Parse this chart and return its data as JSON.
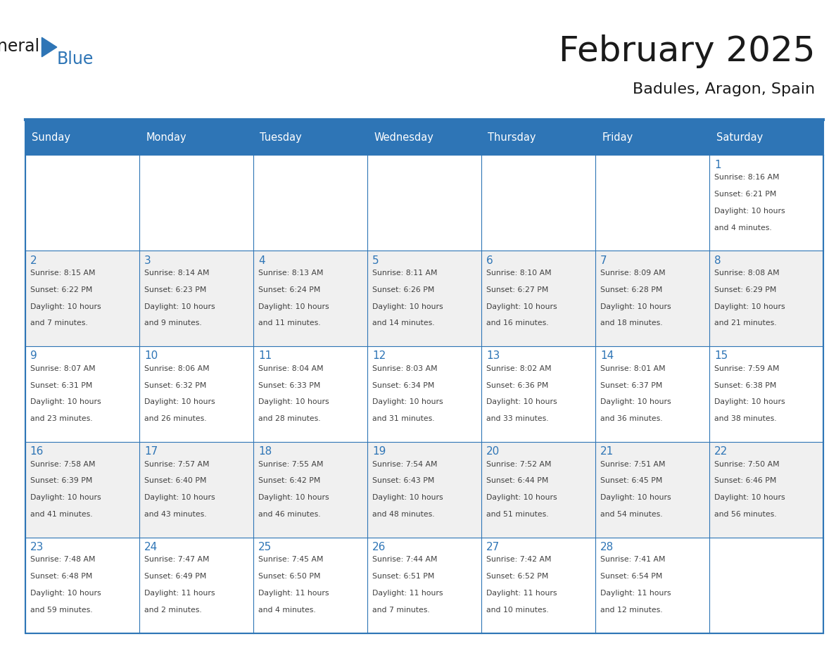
{
  "title": "February 2025",
  "subtitle": "Badules, Aragon, Spain",
  "header_color": "#2E75B6",
  "header_text_color": "#FFFFFF",
  "cell_bg_even": "#FFFFFF",
  "cell_bg_odd": "#F0F0F0",
  "border_color": "#2E75B6",
  "day_number_color": "#2E75B6",
  "cell_text_color": "#404040",
  "title_color": "#1a1a1a",
  "logo_black_color": "#1a1a1a",
  "logo_blue_color": "#2E75B6",
  "weekdays": [
    "Sunday",
    "Monday",
    "Tuesday",
    "Wednesday",
    "Thursday",
    "Friday",
    "Saturday"
  ],
  "days_data": [
    {
      "day": 1,
      "col": 6,
      "row": 0,
      "sunrise": "8:16 AM",
      "sunset": "6:21 PM",
      "daylight": "10 hours and 4 minutes."
    },
    {
      "day": 2,
      "col": 0,
      "row": 1,
      "sunrise": "8:15 AM",
      "sunset": "6:22 PM",
      "daylight": "10 hours and 7 minutes."
    },
    {
      "day": 3,
      "col": 1,
      "row": 1,
      "sunrise": "8:14 AM",
      "sunset": "6:23 PM",
      "daylight": "10 hours and 9 minutes."
    },
    {
      "day": 4,
      "col": 2,
      "row": 1,
      "sunrise": "8:13 AM",
      "sunset": "6:24 PM",
      "daylight": "10 hours and 11 minutes."
    },
    {
      "day": 5,
      "col": 3,
      "row": 1,
      "sunrise": "8:11 AM",
      "sunset": "6:26 PM",
      "daylight": "10 hours and 14 minutes."
    },
    {
      "day": 6,
      "col": 4,
      "row": 1,
      "sunrise": "8:10 AM",
      "sunset": "6:27 PM",
      "daylight": "10 hours and 16 minutes."
    },
    {
      "day": 7,
      "col": 5,
      "row": 1,
      "sunrise": "8:09 AM",
      "sunset": "6:28 PM",
      "daylight": "10 hours and 18 minutes."
    },
    {
      "day": 8,
      "col": 6,
      "row": 1,
      "sunrise": "8:08 AM",
      "sunset": "6:29 PM",
      "daylight": "10 hours and 21 minutes."
    },
    {
      "day": 9,
      "col": 0,
      "row": 2,
      "sunrise": "8:07 AM",
      "sunset": "6:31 PM",
      "daylight": "10 hours and 23 minutes."
    },
    {
      "day": 10,
      "col": 1,
      "row": 2,
      "sunrise": "8:06 AM",
      "sunset": "6:32 PM",
      "daylight": "10 hours and 26 minutes."
    },
    {
      "day": 11,
      "col": 2,
      "row": 2,
      "sunrise": "8:04 AM",
      "sunset": "6:33 PM",
      "daylight": "10 hours and 28 minutes."
    },
    {
      "day": 12,
      "col": 3,
      "row": 2,
      "sunrise": "8:03 AM",
      "sunset": "6:34 PM",
      "daylight": "10 hours and 31 minutes."
    },
    {
      "day": 13,
      "col": 4,
      "row": 2,
      "sunrise": "8:02 AM",
      "sunset": "6:36 PM",
      "daylight": "10 hours and 33 minutes."
    },
    {
      "day": 14,
      "col": 5,
      "row": 2,
      "sunrise": "8:01 AM",
      "sunset": "6:37 PM",
      "daylight": "10 hours and 36 minutes."
    },
    {
      "day": 15,
      "col": 6,
      "row": 2,
      "sunrise": "7:59 AM",
      "sunset": "6:38 PM",
      "daylight": "10 hours and 38 minutes."
    },
    {
      "day": 16,
      "col": 0,
      "row": 3,
      "sunrise": "7:58 AM",
      "sunset": "6:39 PM",
      "daylight": "10 hours and 41 minutes."
    },
    {
      "day": 17,
      "col": 1,
      "row": 3,
      "sunrise": "7:57 AM",
      "sunset": "6:40 PM",
      "daylight": "10 hours and 43 minutes."
    },
    {
      "day": 18,
      "col": 2,
      "row": 3,
      "sunrise": "7:55 AM",
      "sunset": "6:42 PM",
      "daylight": "10 hours and 46 minutes."
    },
    {
      "day": 19,
      "col": 3,
      "row": 3,
      "sunrise": "7:54 AM",
      "sunset": "6:43 PM",
      "daylight": "10 hours and 48 minutes."
    },
    {
      "day": 20,
      "col": 4,
      "row": 3,
      "sunrise": "7:52 AM",
      "sunset": "6:44 PM",
      "daylight": "10 hours and 51 minutes."
    },
    {
      "day": 21,
      "col": 5,
      "row": 3,
      "sunrise": "7:51 AM",
      "sunset": "6:45 PM",
      "daylight": "10 hours and 54 minutes."
    },
    {
      "day": 22,
      "col": 6,
      "row": 3,
      "sunrise": "7:50 AM",
      "sunset": "6:46 PM",
      "daylight": "10 hours and 56 minutes."
    },
    {
      "day": 23,
      "col": 0,
      "row": 4,
      "sunrise": "7:48 AM",
      "sunset": "6:48 PM",
      "daylight": "10 hours and 59 minutes."
    },
    {
      "day": 24,
      "col": 1,
      "row": 4,
      "sunrise": "7:47 AM",
      "sunset": "6:49 PM",
      "daylight": "11 hours and 2 minutes."
    },
    {
      "day": 25,
      "col": 2,
      "row": 4,
      "sunrise": "7:45 AM",
      "sunset": "6:50 PM",
      "daylight": "11 hours and 4 minutes."
    },
    {
      "day": 26,
      "col": 3,
      "row": 4,
      "sunrise": "7:44 AM",
      "sunset": "6:51 PM",
      "daylight": "11 hours and 7 minutes."
    },
    {
      "day": 27,
      "col": 4,
      "row": 4,
      "sunrise": "7:42 AM",
      "sunset": "6:52 PM",
      "daylight": "11 hours and 10 minutes."
    },
    {
      "day": 28,
      "col": 5,
      "row": 4,
      "sunrise": "7:41 AM",
      "sunset": "6:54 PM",
      "daylight": "11 hours and 12 minutes."
    }
  ]
}
